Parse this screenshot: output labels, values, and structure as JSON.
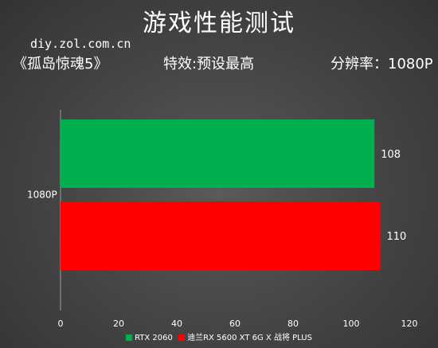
{
  "header": {
    "title": "游戏性能测试",
    "source": "diy.zol.com.cn",
    "game": "《孤岛惊魂5》",
    "effect": "特效:预设最高",
    "resolution": "分辨率：1080P"
  },
  "colors": {
    "series_1": "#00b050",
    "series_2": "#ff0000",
    "axis": "#9a9a9a"
  },
  "chart_data": {
    "type": "bar",
    "orientation": "horizontal",
    "categories": [
      "1080P"
    ],
    "series": [
      {
        "name": "RTX 2060",
        "values": [
          108
        ]
      },
      {
        "name": "迪兰RX 5600 XT 6G X 战将 PLUS",
        "values": [
          110
        ]
      }
    ],
    "xlim": [
      0,
      120
    ],
    "x_ticks": [
      0,
      20,
      40,
      60,
      80,
      100,
      120
    ],
    "grid": false,
    "legend": "bottom",
    "data_labels": true
  }
}
